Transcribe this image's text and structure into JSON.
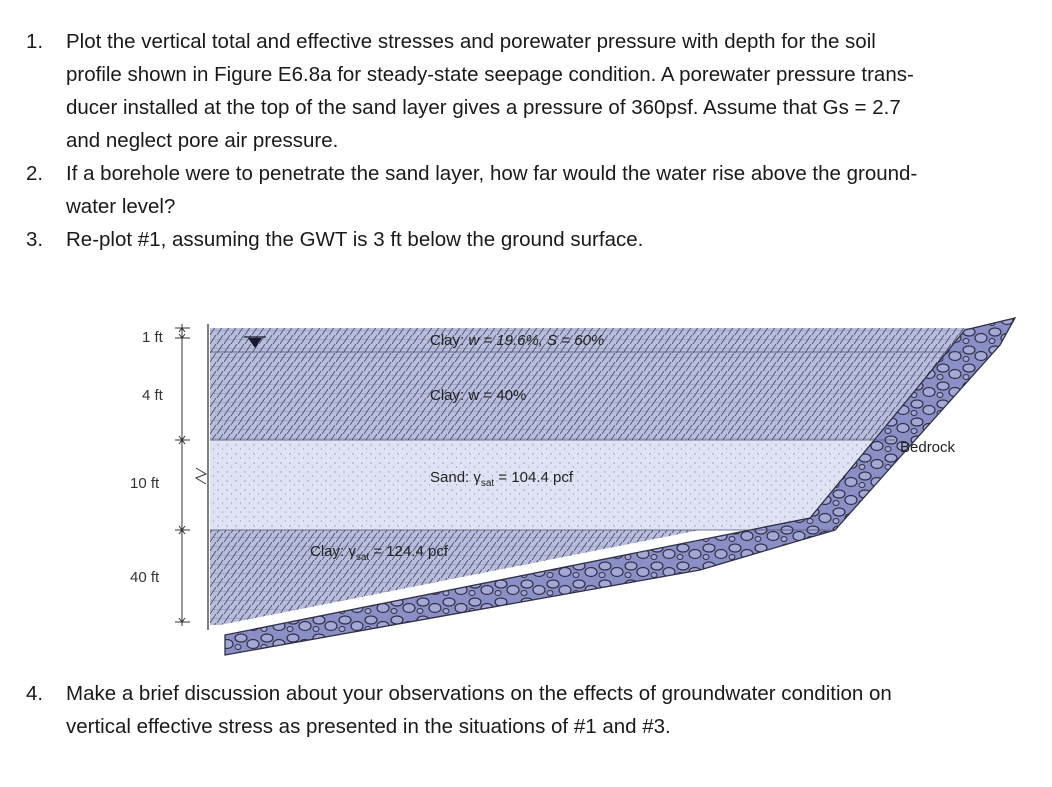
{
  "questions": [
    {
      "number": "1.",
      "lines": [
        "Plot the vertical total and effective stresses and porewater pressure with depth for the soil",
        "profile shown in Figure E6.8a for steady-state seepage condition. A porewater pressure trans-",
        "ducer installed at the top of the sand layer gives a pressure of 360psf. Assume that Gs = 2.7",
        "and neglect pore air pressure."
      ]
    },
    {
      "number": "2.",
      "lines": [
        "If a borehole were to penetrate the sand layer, how far would the water rise above the ground-",
        "water level?"
      ]
    },
    {
      "number": "3.",
      "lines": [
        "Re-plot #1, assuming the GWT is 3 ft below the ground surface."
      ]
    },
    {
      "number": "4.",
      "lines": [
        "Make a brief discussion about your observations on the effects of groundwater condition on",
        "vertical effective stress as presented in the situations of #1 and #3."
      ]
    }
  ],
  "figure": {
    "dimensions": {
      "d1": "1 ft",
      "d2": "4 ft",
      "d3": "10 ft",
      "d4": "40 ft"
    },
    "layers": {
      "clay1_prefix": "Clay: ",
      "clay1_rest": "w = 19.6%, S = 60%",
      "clay2": "Clay: w = 40%",
      "sand_prefix": "Sand: γ",
      "sand_sub": "sat",
      "sand_suffix": " = 104.4 pcf",
      "clay3_prefix": "Clay: γ",
      "clay3_sub": "sat",
      "clay3_suffix": " = 124.4 pcf",
      "bedrock": "Bedrock"
    },
    "colors": {
      "clay": "#b9bedd",
      "sand": "#dfe2f2",
      "hatch": "#4a4f6e",
      "rock": "#8a8fc6",
      "rock_outline": "#2f2f45"
    }
  }
}
